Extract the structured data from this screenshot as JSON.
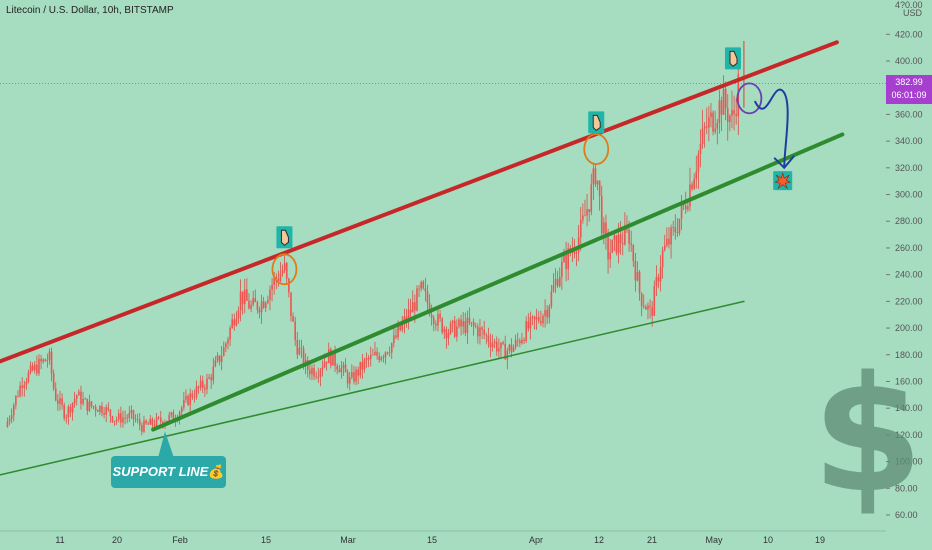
{
  "chart_data": {
    "type": "candlestick",
    "title": "Litecoin / U.S. Dollar, 10h, BITSTAMP",
    "currency": "USD",
    "y_ticks": [
      60,
      80,
      100,
      120,
      140,
      160,
      180,
      200,
      220,
      240,
      260,
      280,
      300,
      320,
      340,
      360,
      380,
      400,
      420
    ],
    "top_partial_tick": "4?0.00",
    "ylim": [
      52,
      438
    ],
    "x_tick_labels": [
      "11",
      "20",
      "Feb",
      "15",
      "Mar",
      "15",
      "Apr",
      "12",
      "21",
      "May",
      "10",
      "19"
    ],
    "last_price": 382.99,
    "last_price_label": "382.99",
    "countdown": "06:01:09",
    "close_series": [
      {
        "date": "2021-01-01",
        "close": 126
      },
      {
        "date": "2021-01-04",
        "close": 160
      },
      {
        "date": "2021-01-07",
        "close": 172
      },
      {
        "date": "2021-01-09",
        "close": 178
      },
      {
        "date": "2021-01-10",
        "close": 150
      },
      {
        "date": "2021-01-12",
        "close": 135
      },
      {
        "date": "2021-01-14",
        "close": 150
      },
      {
        "date": "2021-01-16",
        "close": 142
      },
      {
        "date": "2021-01-19",
        "close": 140
      },
      {
        "date": "2021-01-21",
        "close": 132
      },
      {
        "date": "2021-01-24",
        "close": 134
      },
      {
        "date": "2021-01-26",
        "close": 126
      },
      {
        "date": "2021-01-29",
        "close": 130
      },
      {
        "date": "2021-02-01",
        "close": 134
      },
      {
        "date": "2021-02-04",
        "close": 150
      },
      {
        "date": "2021-02-07",
        "close": 160
      },
      {
        "date": "2021-02-10",
        "close": 185
      },
      {
        "date": "2021-02-13",
        "close": 225
      },
      {
        "date": "2021-02-15",
        "close": 215
      },
      {
        "date": "2021-02-17",
        "close": 220
      },
      {
        "date": "2021-02-19",
        "close": 235
      },
      {
        "date": "2021-02-21",
        "close": 245
      },
      {
        "date": "2021-02-23",
        "close": 190
      },
      {
        "date": "2021-02-25",
        "close": 170
      },
      {
        "date": "2021-02-27",
        "close": 168
      },
      {
        "date": "2021-03-01",
        "close": 180
      },
      {
        "date": "2021-03-03",
        "close": 172
      },
      {
        "date": "2021-03-05",
        "close": 160
      },
      {
        "date": "2021-03-08",
        "close": 175
      },
      {
        "date": "2021-03-11",
        "close": 182
      },
      {
        "date": "2021-03-13",
        "close": 190
      },
      {
        "date": "2021-03-15",
        "close": 205
      },
      {
        "date": "2021-03-18",
        "close": 228
      },
      {
        "date": "2021-03-21",
        "close": 205
      },
      {
        "date": "2021-03-23",
        "close": 198
      },
      {
        "date": "2021-03-26",
        "close": 202
      },
      {
        "date": "2021-03-28",
        "close": 200
      },
      {
        "date": "2021-03-31",
        "close": 190
      },
      {
        "date": "2021-04-02",
        "close": 182
      },
      {
        "date": "2021-04-04",
        "close": 186
      },
      {
        "date": "2021-04-06",
        "close": 198
      },
      {
        "date": "2021-04-08",
        "close": 205
      },
      {
        "date": "2021-04-10",
        "close": 215
      },
      {
        "date": "2021-04-12",
        "close": 240
      },
      {
        "date": "2021-04-14",
        "close": 255
      },
      {
        "date": "2021-04-16",
        "close": 270
      },
      {
        "date": "2021-04-18",
        "close": 300
      },
      {
        "date": "2021-04-19",
        "close": 320
      },
      {
        "date": "2021-04-20",
        "close": 280
      },
      {
        "date": "2021-04-21",
        "close": 255
      },
      {
        "date": "2021-04-23",
        "close": 265
      },
      {
        "date": "2021-04-25",
        "close": 270
      },
      {
        "date": "2021-04-27",
        "close": 225
      },
      {
        "date": "2021-04-29",
        "close": 210
      },
      {
        "date": "2021-05-01",
        "close": 255
      },
      {
        "date": "2021-05-03",
        "close": 270
      },
      {
        "date": "2021-05-05",
        "close": 290
      },
      {
        "date": "2021-05-07",
        "close": 320
      },
      {
        "date": "2021-05-09",
        "close": 350
      },
      {
        "date": "2021-05-10",
        "close": 355
      },
      {
        "date": "2021-05-12",
        "close": 370
      },
      {
        "date": "2021-05-14",
        "close": 355
      },
      {
        "date": "2021-05-15",
        "close": 383
      }
    ],
    "trendlines": [
      {
        "name": "upper-resistance",
        "color": "#c62828",
        "width": 4,
        "from": {
          "date": "2020-12-31",
          "price": 175
        },
        "to": {
          "date": "2021-06-02",
          "price": 414
        }
      },
      {
        "name": "support-mid",
        "color": "#2e8b2e",
        "width": 4,
        "from": {
          "date": "2021-01-28",
          "price": 124
        },
        "to": {
          "date": "2021-06-03",
          "price": 345
        }
      },
      {
        "name": "support-long",
        "color": "#2e8b2e",
        "width": 1.5,
        "from": {
          "date": "2020-12-31",
          "price": 90
        },
        "to": {
          "date": "2021-05-16",
          "price": 220
        }
      }
    ],
    "circles": [
      {
        "color": "#e07b1c",
        "date": "2021-02-21",
        "price": 244
      },
      {
        "color": "#e07b1c",
        "date": "2021-04-19",
        "price": 334
      },
      {
        "color": "#6b3fb0",
        "date": "2021-05-17",
        "price": 372
      }
    ],
    "hand_markers": [
      {
        "date": "2021-02-21",
        "price": 268
      },
      {
        "date": "2021-04-19",
        "price": 354
      },
      {
        "date": "2021-05-14",
        "price": 402
      }
    ],
    "forecast_arrow": {
      "color": "#1e3f9e",
      "from": {
        "date": "2021-05-18",
        "price": 370
      },
      "to": {
        "date": "2021-05-23",
        "price": 320
      }
    },
    "explosion_marker": {
      "date": "2021-05-23",
      "price": 310
    },
    "support_label": {
      "text": "SUPPORT LINE",
      "emoji": "💰"
    },
    "colors": {
      "background": "#a6dcc0",
      "candle": "#ef5350",
      "axis_text": "#555555",
      "price_tag": "#a63fcf"
    },
    "grid": false
  }
}
